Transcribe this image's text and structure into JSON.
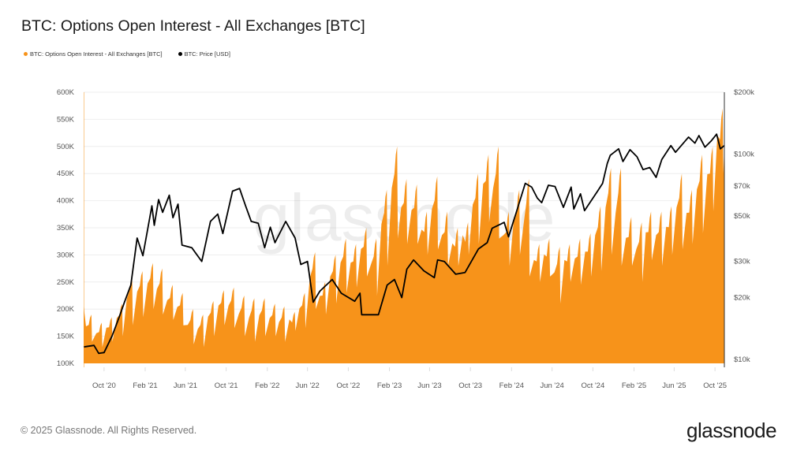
{
  "title": "BTC: Options Open Interest - All Exchanges [BTC]",
  "legend": [
    {
      "label": "BTC: Options Open Interest - All Exchanges [BTC]",
      "color": "#F7931A"
    },
    {
      "label": "BTC: Price [USD]",
      "color": "#000000"
    }
  ],
  "watermark": "glassnode",
  "footer": {
    "copyright": "© 2025 Glassnode. All Rights Reserved.",
    "logo": "glassnode"
  },
  "chart_data": {
    "type": "area+line",
    "title": "BTC: Options Open Interest - All Exchanges [BTC]",
    "x_range": [
      "2020-08-01",
      "2025-10-29"
    ],
    "x_ticks": [
      "Oct '20",
      "Feb '21",
      "Jun '21",
      "Oct '21",
      "Feb '22",
      "Jun '22",
      "Oct '22",
      "Feb '23",
      "Jun '23",
      "Oct '23",
      "Feb '24",
      "Jun '24",
      "Oct '24",
      "Feb '25",
      "Jun '25",
      "Oct '25"
    ],
    "x_tick_dates": [
      "2020-10-01",
      "2021-02-01",
      "2021-06-01",
      "2021-10-01",
      "2022-02-01",
      "2022-06-01",
      "2022-10-01",
      "2023-02-01",
      "2023-06-01",
      "2023-10-01",
      "2024-02-01",
      "2024-06-01",
      "2024-10-01",
      "2025-02-01",
      "2025-06-01",
      "2025-10-01"
    ],
    "y_left": {
      "ticks": [
        "100K",
        "150K",
        "200K",
        "250K",
        "300K",
        "350K",
        "400K",
        "450K",
        "500K",
        "550K",
        "600K"
      ],
      "tick_values": [
        100000,
        150000,
        200000,
        250000,
        300000,
        350000,
        400000,
        450000,
        500000,
        550000,
        600000
      ],
      "range": [
        100000,
        600000
      ],
      "scale": "linear"
    },
    "y_right": {
      "ticks": [
        "$10k",
        "$20k",
        "$30k",
        "$50k",
        "$70k",
        "$100k",
        "$200k"
      ],
      "tick_values": [
        10000,
        20000,
        30000,
        50000,
        70000,
        100000,
        200000
      ],
      "range": [
        10000,
        200000
      ],
      "scale": "log"
    },
    "grid": true,
    "legend_position": "top-left",
    "series": [
      {
        "name": "BTC: Options Open Interest - All Exchanges [BTC]",
        "axis": "left",
        "type": "area",
        "color": "#F7931A",
        "monthly_peak_trough": [
          [
            "2020-08",
            190000,
            140000
          ],
          [
            "2020-09",
            175000,
            130000
          ],
          [
            "2020-10",
            185000,
            140000
          ],
          [
            "2020-11",
            210000,
            150000
          ],
          [
            "2020-12",
            260000,
            170000
          ],
          [
            "2021-01",
            270000,
            185000
          ],
          [
            "2021-02",
            285000,
            200000
          ],
          [
            "2021-03",
            275000,
            190000
          ],
          [
            "2021-04",
            245000,
            180000
          ],
          [
            "2021-05",
            230000,
            170000
          ],
          [
            "2021-06",
            200000,
            135000
          ],
          [
            "2021-07",
            190000,
            130000
          ],
          [
            "2021-08",
            215000,
            150000
          ],
          [
            "2021-09",
            235000,
            170000
          ],
          [
            "2021-10",
            240000,
            165000
          ],
          [
            "2021-11",
            225000,
            150000
          ],
          [
            "2021-12",
            220000,
            140000
          ],
          [
            "2022-01",
            220000,
            150000
          ],
          [
            "2022-02",
            210000,
            150000
          ],
          [
            "2022-03",
            205000,
            140000
          ],
          [
            "2022-04",
            195000,
            160000
          ],
          [
            "2022-05",
            230000,
            165000
          ],
          [
            "2022-06",
            305000,
            200000
          ],
          [
            "2022-07",
            250000,
            190000
          ],
          [
            "2022-08",
            300000,
            210000
          ],
          [
            "2022-09",
            330000,
            230000
          ],
          [
            "2022-10",
            320000,
            240000
          ],
          [
            "2022-11",
            350000,
            260000
          ],
          [
            "2022-12",
            330000,
            225000
          ],
          [
            "2023-01",
            420000,
            280000
          ],
          [
            "2023-02",
            500000,
            330000
          ],
          [
            "2023-03",
            440000,
            320000
          ],
          [
            "2023-04",
            430000,
            320000
          ],
          [
            "2023-05",
            380000,
            300000
          ],
          [
            "2023-06",
            445000,
            310000
          ],
          [
            "2023-07",
            380000,
            280000
          ],
          [
            "2023-08",
            350000,
            280000
          ],
          [
            "2023-09",
            360000,
            300000
          ],
          [
            "2023-10",
            450000,
            320000
          ],
          [
            "2023-11",
            485000,
            360000
          ],
          [
            "2023-12",
            500000,
            330000
          ],
          [
            "2024-01",
            380000,
            280000
          ],
          [
            "2024-02",
            420000,
            300000
          ],
          [
            "2024-03",
            440000,
            260000
          ],
          [
            "2024-04",
            320000,
            250000
          ],
          [
            "2024-05",
            330000,
            260000
          ],
          [
            "2024-06",
            315000,
            210000
          ],
          [
            "2024-07",
            320000,
            250000
          ],
          [
            "2024-08",
            330000,
            245000
          ],
          [
            "2024-09",
            340000,
            260000
          ],
          [
            "2024-10",
            390000,
            270000
          ],
          [
            "2024-11",
            460000,
            300000
          ],
          [
            "2024-12",
            460000,
            280000
          ],
          [
            "2025-01",
            370000,
            280000
          ],
          [
            "2025-02",
            360000,
            250000
          ],
          [
            "2025-03",
            380000,
            290000
          ],
          [
            "2025-04",
            380000,
            280000
          ],
          [
            "2025-05",
            390000,
            300000
          ],
          [
            "2025-06",
            450000,
            310000
          ],
          [
            "2025-07",
            420000,
            320000
          ],
          [
            "2025-08",
            485000,
            340000
          ],
          [
            "2025-09",
            500000,
            380000
          ],
          [
            "2025-10",
            570000,
            450000
          ]
        ],
        "last_value": 500000
      },
      {
        "name": "BTC: Price [USD]",
        "axis": "right",
        "type": "line",
        "color": "#000000",
        "points": [
          [
            "2020-08-01",
            11500
          ],
          [
            "2020-09-01",
            11700
          ],
          [
            "2020-09-15",
            10700
          ],
          [
            "2020-10-01",
            10800
          ],
          [
            "2020-10-25",
            13000
          ],
          [
            "2020-11-15",
            16000
          ],
          [
            "2020-12-01",
            19000
          ],
          [
            "2020-12-20",
            23000
          ],
          [
            "2021-01-08",
            39000
          ],
          [
            "2021-01-25",
            32000
          ],
          [
            "2021-02-21",
            56000
          ],
          [
            "2021-02-28",
            45000
          ],
          [
            "2021-03-13",
            60000
          ],
          [
            "2021-03-25",
            52000
          ],
          [
            "2021-04-14",
            63000
          ],
          [
            "2021-04-25",
            49000
          ],
          [
            "2021-05-10",
            57000
          ],
          [
            "2021-05-22",
            36000
          ],
          [
            "2021-06-20",
            35000
          ],
          [
            "2021-07-20",
            30000
          ],
          [
            "2021-08-15",
            47000
          ],
          [
            "2021-09-06",
            51000
          ],
          [
            "2021-09-21",
            41000
          ],
          [
            "2021-10-20",
            66000
          ],
          [
            "2021-11-10",
            68000
          ],
          [
            "2021-11-28",
            56000
          ],
          [
            "2021-12-15",
            47000
          ],
          [
            "2022-01-05",
            46000
          ],
          [
            "2022-01-24",
            35000
          ],
          [
            "2022-02-10",
            44000
          ],
          [
            "2022-02-24",
            37000
          ],
          [
            "2022-03-28",
            47000
          ],
          [
            "2022-04-25",
            39000
          ],
          [
            "2022-05-12",
            29000
          ],
          [
            "2022-06-01",
            30000
          ],
          [
            "2022-06-18",
            19000
          ],
          [
            "2022-07-08",
            21500
          ],
          [
            "2022-08-14",
            24500
          ],
          [
            "2022-09-10",
            21000
          ],
          [
            "2022-10-20",
            19200
          ],
          [
            "2022-11-05",
            21000
          ],
          [
            "2022-11-10",
            16500
          ],
          [
            "2022-12-30",
            16500
          ],
          [
            "2023-01-25",
            23000
          ],
          [
            "2023-02-16",
            24500
          ],
          [
            "2023-03-10",
            20000
          ],
          [
            "2023-03-25",
            27500
          ],
          [
            "2023-04-14",
            30500
          ],
          [
            "2023-05-15",
            27000
          ],
          [
            "2023-06-15",
            25000
          ],
          [
            "2023-06-25",
            30500
          ],
          [
            "2023-07-15",
            30000
          ],
          [
            "2023-08-18",
            26000
          ],
          [
            "2023-09-15",
            26500
          ],
          [
            "2023-10-25",
            34500
          ],
          [
            "2023-11-20",
            37000
          ],
          [
            "2023-12-05",
            43500
          ],
          [
            "2024-01-10",
            46500
          ],
          [
            "2024-01-23",
            39500
          ],
          [
            "2024-02-15",
            52000
          ],
          [
            "2024-03-13",
            72000
          ],
          [
            "2024-04-01",
            69000
          ],
          [
            "2024-04-18",
            61000
          ],
          [
            "2024-05-01",
            58000
          ],
          [
            "2024-05-21",
            70500
          ],
          [
            "2024-06-10",
            69500
          ],
          [
            "2024-07-05",
            55000
          ],
          [
            "2024-07-28",
            69000
          ],
          [
            "2024-08-05",
            54000
          ],
          [
            "2024-08-25",
            64000
          ],
          [
            "2024-09-06",
            53000
          ],
          [
            "2024-10-15",
            66000
          ],
          [
            "2024-10-30",
            72000
          ],
          [
            "2024-11-13",
            90000
          ],
          [
            "2024-11-22",
            98500
          ],
          [
            "2024-12-17",
            106000
          ],
          [
            "2024-12-30",
            92000
          ],
          [
            "2025-01-20",
            105000
          ],
          [
            "2025-02-10",
            97000
          ],
          [
            "2025-02-28",
            84000
          ],
          [
            "2025-03-20",
            86000
          ],
          [
            "2025-04-08",
            77000
          ],
          [
            "2025-04-25",
            94000
          ],
          [
            "2025-05-22",
            110000
          ],
          [
            "2025-06-05",
            102000
          ],
          [
            "2025-07-14",
            121000
          ],
          [
            "2025-08-02",
            113000
          ],
          [
            "2025-08-14",
            123000
          ],
          [
            "2025-09-01",
            108000
          ],
          [
            "2025-09-20",
            116000
          ],
          [
            "2025-10-06",
            125000
          ],
          [
            "2025-10-17",
            106000
          ],
          [
            "2025-10-29",
            110000
          ]
        ]
      }
    ]
  }
}
